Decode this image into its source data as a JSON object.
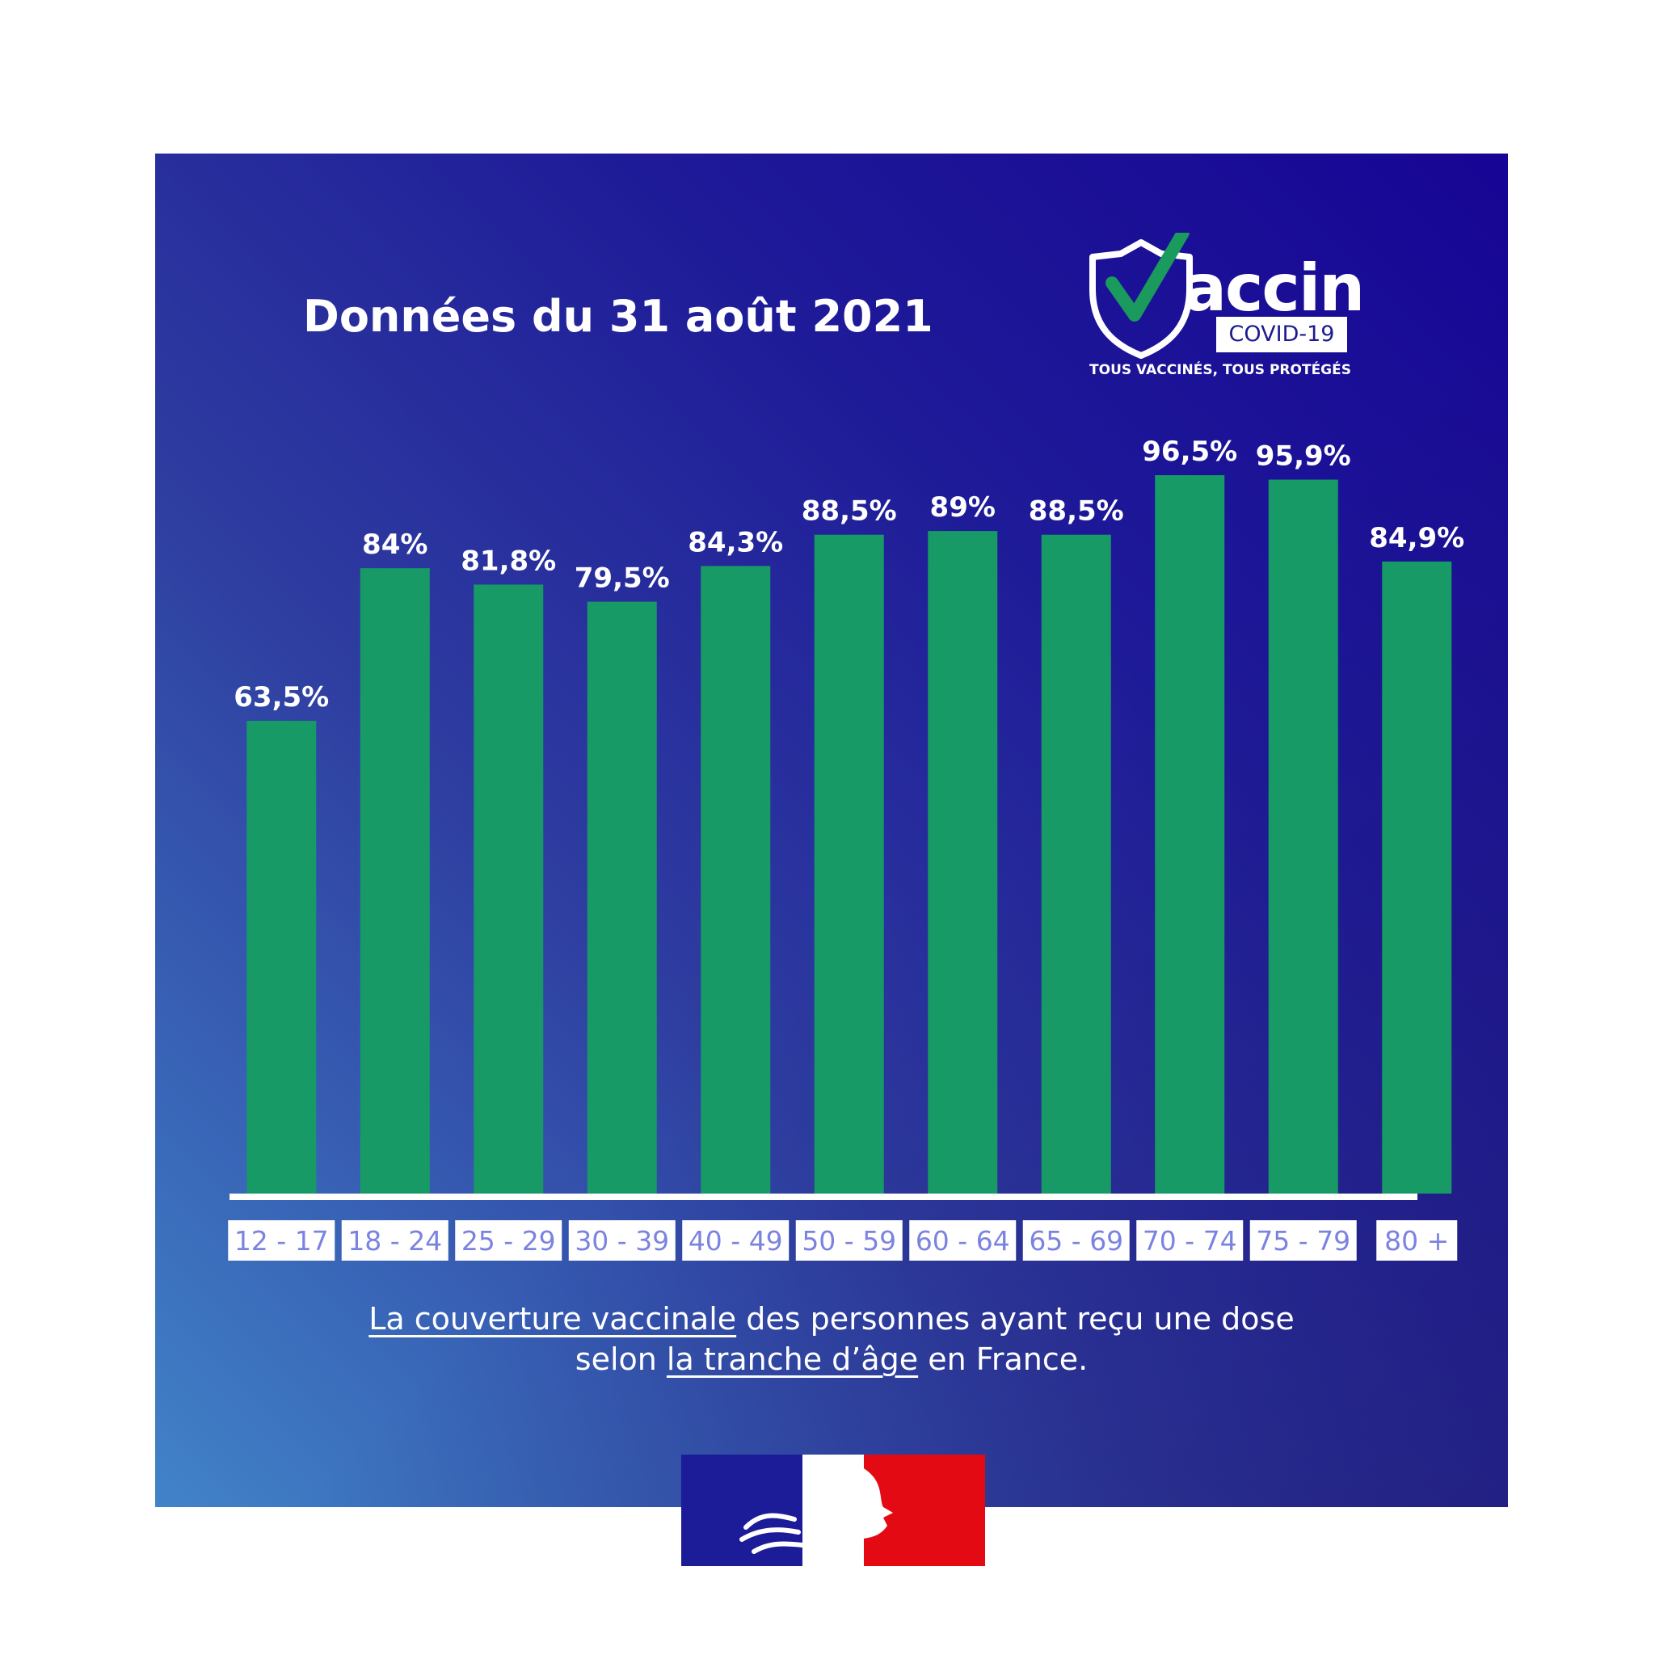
{
  "header": {
    "title": "Données du 31 août 2021"
  },
  "logo": {
    "word": "accin",
    "badge": "COVID-19",
    "tagline": "TOUS VACCINÉS, TOUS PROTÉGÉS",
    "check_color": "#1a9a5c"
  },
  "caption": {
    "part1": "La couverture vaccinale",
    "part2": " des personnes ayant reçu une dose",
    "part3": "selon ",
    "part4": "la tranche d’âge",
    "part5": " en France."
  },
  "colors": {
    "bar": "#179a66",
    "label_text": "#7b83e0",
    "axis": "#ffffff",
    "flag_blue": "#1d1c98",
    "flag_red": "#e30a13"
  },
  "chart_data": {
    "type": "bar",
    "title": "Données du 31 août 2021",
    "categories": [
      "12 - 17",
      "18 - 24",
      "25 - 29",
      "30 - 39",
      "40 - 49",
      "50 - 59",
      "60 - 64",
      "65 - 69",
      "70 - 74",
      "75 - 79",
      "80 +"
    ],
    "values": [
      63.5,
      84,
      81.8,
      79.5,
      84.3,
      88.5,
      89,
      88.5,
      96.5,
      95.9,
      84.9
    ],
    "data_labels": [
      "63,5%",
      "84%",
      "81,8%",
      "79,5%",
      "84,3%",
      "88,5%",
      "89%",
      "88,5%",
      "96,5%",
      "95,9%",
      "84,9%"
    ],
    "ylim": [
      0,
      100
    ],
    "grid": false,
    "legend": "none"
  }
}
